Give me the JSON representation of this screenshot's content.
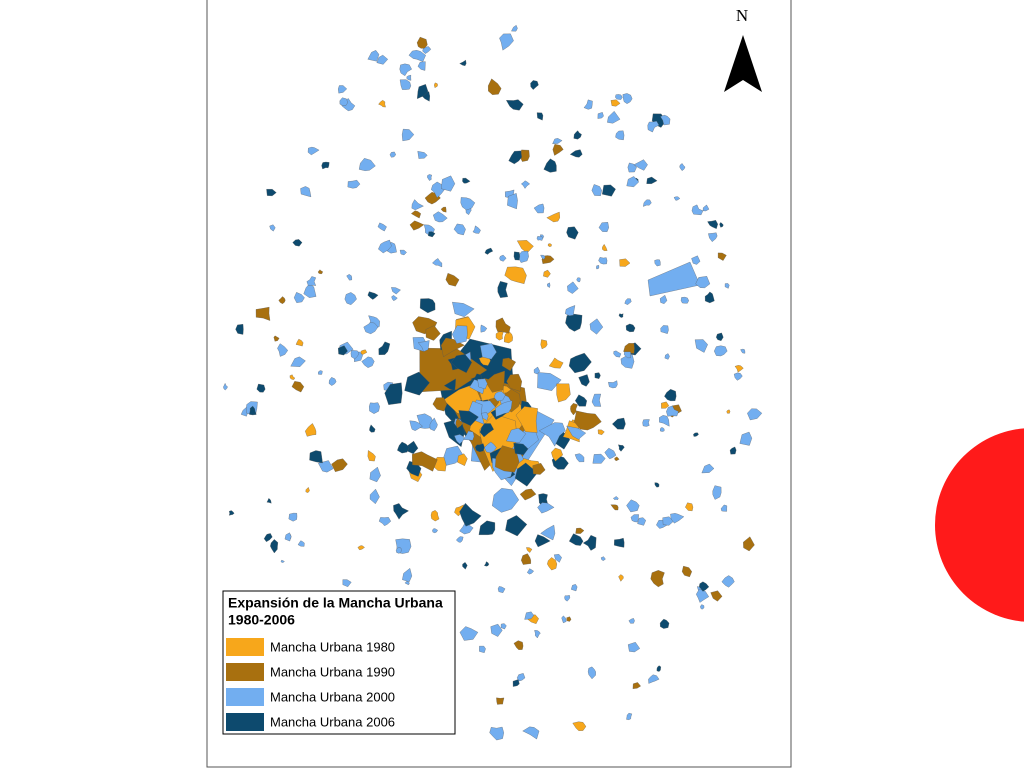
{
  "north_label": "N",
  "legend": {
    "title": "Expansión de la Mancha Urbana",
    "subtitle": "1980-2006",
    "items": [
      {
        "label": "Mancha Urbana 1980",
        "color": "#f7a71b"
      },
      {
        "label": "Mancha Urbana 1990",
        "color": "#a8700f"
      },
      {
        "label": "Mancha Urbana 2000",
        "color": "#72aef0"
      },
      {
        "label": "Mancha Urbana 2006",
        "color": "#0d4a6e"
      }
    ]
  }
}
